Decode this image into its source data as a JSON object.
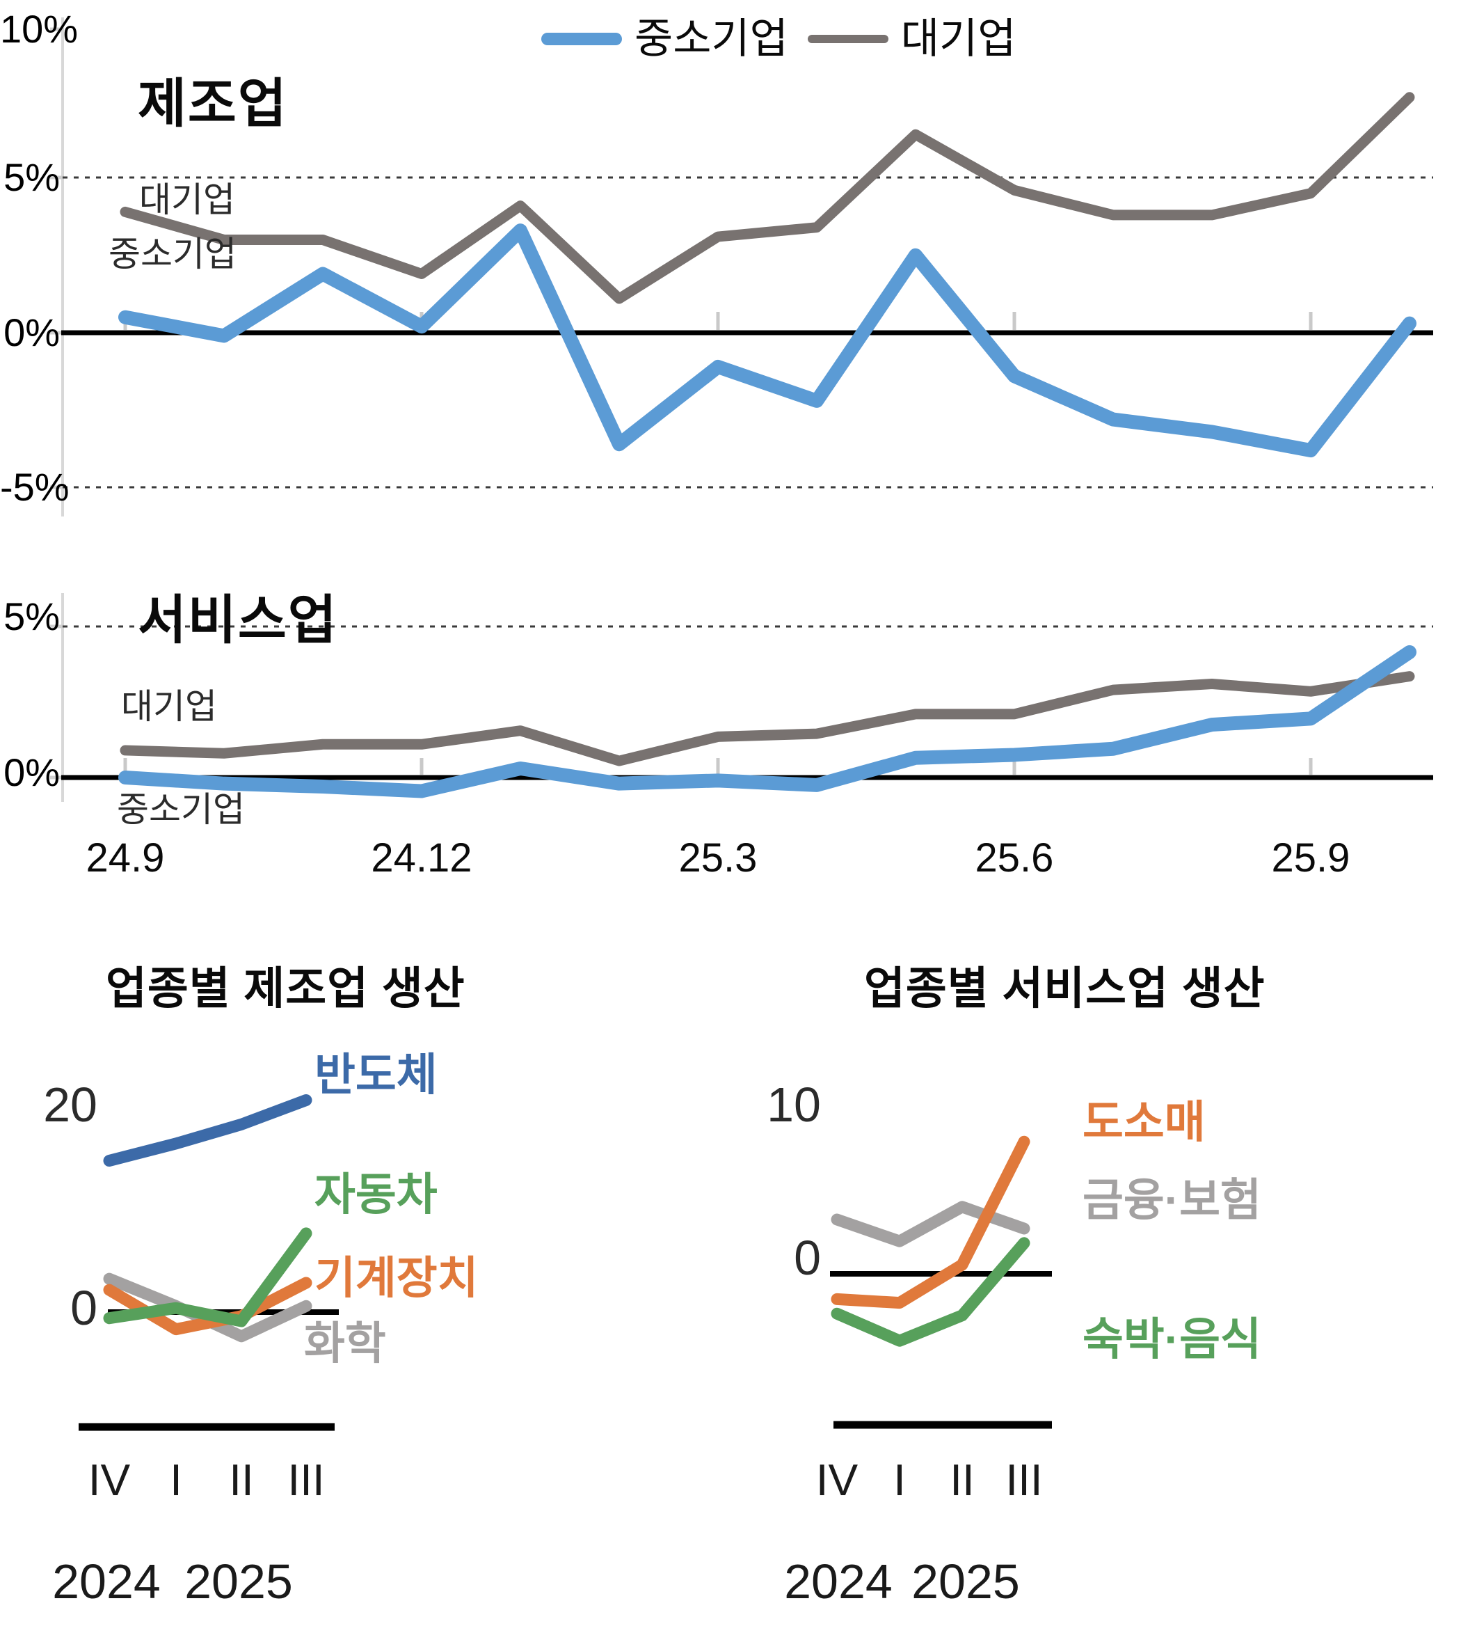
{
  "legend": {
    "sme": "중소기업",
    "large": "대기업"
  },
  "x_axis": {
    "tick_labels": [
      "24.9",
      "24.12",
      "25.3",
      "25.6",
      "25.9"
    ],
    "tick_indices": [
      0,
      3,
      6,
      9,
      12
    ],
    "n_points": 14
  },
  "quarter_axis": {
    "categories": [
      "IV",
      "I",
      "II",
      "III"
    ],
    "years": [
      "2024",
      "2025"
    ]
  },
  "chart_data": [
    {
      "type": "line",
      "title": "제조업",
      "y_tick_labels": [
        "10%",
        "5%",
        "0%",
        "-5%"
      ],
      "ylim": [
        -5,
        10
      ],
      "grid_values": [
        5,
        -5
      ],
      "annotations": {
        "large": "대기업",
        "sme": "중소기업"
      },
      "x_tick_labels": [
        "24.9",
        "24.12",
        "25.3",
        "25.6",
        "25.9"
      ],
      "series": [
        {
          "name": "대기업",
          "color": "#787270",
          "values": [
            3.9,
            3.0,
            3.0,
            1.9,
            4.1,
            1.1,
            3.1,
            3.4,
            6.4,
            4.6,
            3.8,
            3.8,
            4.5,
            7.6
          ]
        },
        {
          "name": "중소기업",
          "color": "#5b9bd5",
          "values": [
            0.5,
            -0.1,
            1.9,
            0.2,
            3.3,
            -3.6,
            -1.1,
            -2.2,
            2.5,
            -1.4,
            -2.8,
            -3.2,
            -3.8,
            0.3
          ]
        }
      ]
    },
    {
      "type": "line",
      "title": "서비스업",
      "y_tick_labels": [
        "5%",
        "0%"
      ],
      "ylim": [
        -1.5,
        5
      ],
      "grid_values": [
        5
      ],
      "annotations": {
        "large": "대기업",
        "sme": "중소기업"
      },
      "x_tick_labels": [
        "24.9",
        "24.12",
        "25.3",
        "25.6",
        "25.9"
      ],
      "series": [
        {
          "name": "대기업",
          "color": "#787270",
          "values": [
            0.9,
            0.8,
            1.1,
            1.1,
            1.55,
            0.55,
            1.35,
            1.45,
            2.1,
            2.1,
            2.9,
            3.1,
            2.85,
            3.35
          ]
        },
        {
          "name": "중소기업",
          "color": "#5b9bd5",
          "values": [
            0.0,
            -0.2,
            -0.3,
            -0.45,
            0.3,
            -0.2,
            -0.1,
            -0.25,
            0.65,
            0.75,
            0.95,
            1.75,
            1.95,
            4.15
          ]
        }
      ]
    },
    {
      "type": "line",
      "title": "업종별 제조업 생산",
      "y_tick_labels": [
        "20",
        "0"
      ],
      "ylim": [
        -4,
        24
      ],
      "categories": [
        "IV",
        "I",
        "II",
        "III"
      ],
      "year_labels": [
        "2024",
        "2025"
      ],
      "series": [
        {
          "name": "화학",
          "color": "#a3a1a1",
          "values": [
            3.3,
            0.6,
            -2.4,
            0.6
          ]
        },
        {
          "name": "기계장치",
          "color": "#e0793b",
          "values": [
            2.2,
            -1.7,
            -0.4,
            2.9
          ]
        },
        {
          "name": "자동차",
          "color": "#57a05b",
          "values": [
            -0.6,
            0.4,
            -0.9,
            7.8
          ]
        },
        {
          "name": "반도체",
          "color": "#3c6aa8",
          "values": [
            15.0,
            16.7,
            18.6,
            21.0
          ]
        }
      ]
    },
    {
      "type": "line",
      "title": "업종별 서비스업 생산",
      "y_tick_labels": [
        "10",
        "0"
      ],
      "ylim": [
        -5,
        10
      ],
      "categories": [
        "IV",
        "I",
        "II",
        "III"
      ],
      "year_labels": [
        "2024",
        "2025"
      ],
      "series": [
        {
          "name": "금융·보험",
          "color": "#a3a1a1",
          "values": [
            3.0,
            1.8,
            3.7,
            2.5
          ]
        },
        {
          "name": "숙박·음식",
          "color": "#57a05b",
          "values": [
            -2.2,
            -3.7,
            -2.3,
            1.7
          ]
        },
        {
          "name": "도소매",
          "color": "#e0793b",
          "values": [
            -1.4,
            -1.6,
            0.5,
            7.3
          ]
        }
      ]
    }
  ]
}
